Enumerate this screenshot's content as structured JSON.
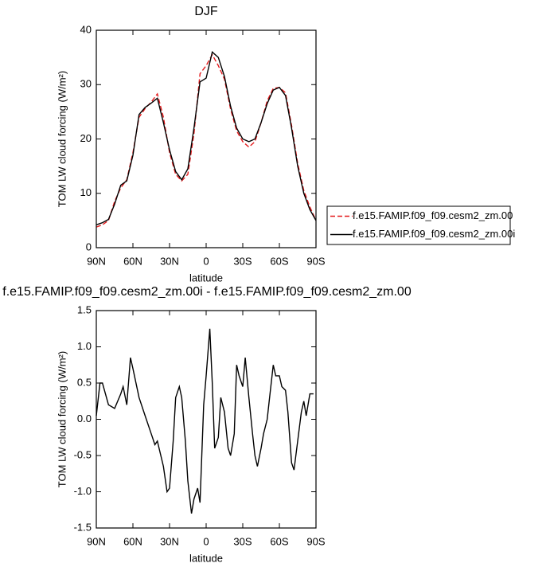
{
  "chart_data": [
    {
      "type": "line",
      "title": "DJF",
      "xlabel": "latitude",
      "ylabel": "TOM LW cloud forcing (W/m²)",
      "x": [
        90,
        85,
        80,
        75,
        70,
        65,
        60,
        55,
        50,
        45,
        40,
        35,
        30,
        25,
        20,
        15,
        10,
        5,
        0,
        -5,
        -10,
        -15,
        -20,
        -25,
        -30,
        -35,
        -40,
        -45,
        -50,
        -55,
        -60,
        -65,
        -70,
        -75,
        -80,
        -85,
        -90
      ],
      "series": [
        {
          "name": "f.e15.FAMIP.f09_f09.cesm2_zm.00",
          "color": "#e41a1c",
          "dash": "dashed",
          "values": [
            3.8,
            4.2,
            5,
            8.5,
            11,
            12.5,
            17.5,
            24,
            25.6,
            26.8,
            28.3,
            24,
            17.5,
            13.5,
            12.3,
            13.5,
            21,
            32,
            33.5,
            35.5,
            33.5,
            31,
            25.5,
            21.5,
            19.5,
            18.5,
            19.5,
            23,
            27,
            29.3,
            29.5,
            28.5,
            22.5,
            15.5,
            10.5,
            7.5,
            5
          ]
        },
        {
          "name": "f.e15.FAMIP.f09_f09.cesm2_zm.00i",
          "color": "#000000",
          "dash": "solid",
          "values": [
            4.2,
            4.6,
            5.2,
            8,
            11.5,
            12.3,
            17,
            24.5,
            25.8,
            26.6,
            27.5,
            23,
            18,
            14,
            12.5,
            14.5,
            22,
            30.5,
            31.2,
            36,
            35,
            31.5,
            26,
            22,
            20,
            19.5,
            20,
            23,
            26.5,
            29,
            29.5,
            28,
            22,
            15,
            10,
            7,
            5
          ]
        }
      ],
      "xlim": [
        90,
        -90
      ],
      "xticks": [
        {
          "value": 90,
          "label": "90N"
        },
        {
          "value": 60,
          "label": "60N"
        },
        {
          "value": 30,
          "label": "30N"
        },
        0,
        {
          "value": -30,
          "label": "30S"
        },
        {
          "value": -60,
          "label": "60S"
        },
        {
          "value": -90,
          "label": "90S"
        }
      ],
      "ylim": [
        0,
        40
      ],
      "yticks": [
        0,
        10,
        20,
        30,
        40
      ],
      "legend": "outside-right"
    },
    {
      "type": "line",
      "title": "f.e15.FAMIP.f09_f09.cesm2_zm.00i - f.e15.FAMIP.f09_f09.cesm2_zm.00",
      "xlabel": "latitude",
      "ylabel": "TOM LW cloud forcing (W/m²)",
      "x": [
        90,
        87,
        85,
        80,
        75,
        70,
        68,
        65,
        62,
        60,
        55,
        50,
        45,
        42,
        40,
        35,
        32,
        30,
        27,
        25,
        22,
        20,
        17,
        15,
        12,
        10,
        7,
        5,
        2,
        0,
        -3,
        -5,
        -7,
        -10,
        -12,
        -15,
        -18,
        -20,
        -23,
        -25,
        -27,
        -30,
        -32,
        -35,
        -38,
        -40,
        -42,
        -45,
        -47,
        -50,
        -52,
        -55,
        -57,
        -60,
        -62,
        -65,
        -67,
        -70,
        -72,
        -75,
        -78,
        -80,
        -82,
        -85,
        -88
      ],
      "values": [
        0.05,
        0.5,
        0.5,
        0.2,
        0.15,
        0.35,
        0.45,
        0.2,
        0.85,
        0.7,
        0.3,
        0.05,
        -0.2,
        -0.35,
        -0.3,
        -0.65,
        -1.0,
        -0.95,
        -0.3,
        0.3,
        0.45,
        0.3,
        -0.3,
        -0.85,
        -1.3,
        -1.1,
        -0.95,
        -1.15,
        0.2,
        0.6,
        1.25,
        0.5,
        -0.4,
        -0.25,
        0.3,
        0.1,
        -0.4,
        -0.5,
        -0.2,
        0.75,
        0.6,
        0.45,
        0.85,
        0.3,
        -0.2,
        -0.5,
        -0.65,
        -0.4,
        -0.2,
        0,
        0.3,
        0.75,
        0.6,
        0.6,
        0.45,
        0.4,
        0.1,
        -0.6,
        -0.7,
        -0.3,
        0.1,
        0.25,
        0.05,
        0.35,
        0.35
      ],
      "color": "#000000",
      "xlim": [
        90,
        -90
      ],
      "xticks": [
        {
          "value": 90,
          "label": "90N"
        },
        {
          "value": 60,
          "label": "60N"
        },
        {
          "value": 30,
          "label": "30N"
        },
        0,
        {
          "value": -30,
          "label": "30S"
        },
        {
          "value": -60,
          "label": "60S"
        },
        {
          "value": -90,
          "label": "90S"
        }
      ],
      "ylim": [
        -1.5,
        1.5
      ],
      "yticks": [
        -1.5,
        {
          "value": -1,
          "label": "-1.0"
        },
        -0.5,
        {
          "value": 0,
          "label": "0.0"
        },
        0.5,
        {
          "value": 1,
          "label": "1.0"
        },
        1.5
      ]
    }
  ]
}
